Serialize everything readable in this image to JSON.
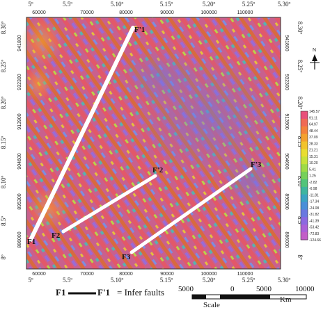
{
  "map": {
    "top_degree_labels": [
      "5º",
      "5.5º",
      "5.10º",
      "5.15º",
      "5.20º",
      "5.25º",
      "5.30º"
    ],
    "bottom_degree_labels": [
      "5º",
      "5.5º",
      "5.10º",
      "5.15º",
      "5.20º",
      "5.25º",
      "5.30º"
    ],
    "top_utm_labels": [
      "60000",
      "70000",
      "80000",
      "90000",
      "100000",
      "110000"
    ],
    "bottom_utm_labels": [
      "60000",
      "70000",
      "80000",
      "90000",
      "100000",
      "110000"
    ],
    "right_degree_labels": [
      "8.30º",
      "8.25º",
      "8.20º",
      "8.15º",
      "8.10º",
      "8.5º",
      "8º"
    ],
    "left_degree_labels": [
      "8.30º",
      "8.25º",
      "8.20º",
      "8.15º",
      "8.10º",
      "8.5º",
      "8º"
    ],
    "right_utm_labels": [
      "941800",
      "932300",
      "913900",
      "904600",
      "895300",
      "886000"
    ],
    "left_utm_labels": [
      "941800",
      "932300",
      "913900",
      "904600",
      "895300",
      "886000"
    ]
  },
  "faults": [
    {
      "start_label": "F1",
      "end_label": "F'1"
    },
    {
      "start_label": "F2",
      "end_label": "F'2"
    },
    {
      "start_label": "F3",
      "end_label": "F'3"
    }
  ],
  "legend": {
    "fault_start": "F1",
    "fault_end": "F'1",
    "description": "= Infer faults"
  },
  "scale": {
    "labels": [
      "5000",
      "0",
      "5000",
      "10000"
    ],
    "unit": "Km",
    "title": "Scale"
  },
  "north_arrow": {
    "letter": "N"
  },
  "colorbar": {
    "colors": [
      "#e8507a",
      "#f06a55",
      "#f4823b",
      "#f4a12e",
      "#f2c32c",
      "#e9dd31",
      "#c8e23a",
      "#9fdb46",
      "#76d05a",
      "#52c47a",
      "#3eb59f",
      "#3aa3c2",
      "#4a8ed8",
      "#6a78e0",
      "#8c68e0",
      "#aa60d8",
      "#c25ec8"
    ],
    "tick_labels": [
      "145.57",
      "91.11",
      "64.97",
      "48.44",
      "37.09",
      "28.33",
      "21.21",
      "15.31",
      "10.20",
      "5.41",
      "1.25",
      "-2.82",
      "-6.98",
      "-11.81",
      "-17.34",
      "-24.08",
      "-31.82",
      "-41.39",
      "-53.42",
      "-72.83",
      "-124.66"
    ]
  }
}
